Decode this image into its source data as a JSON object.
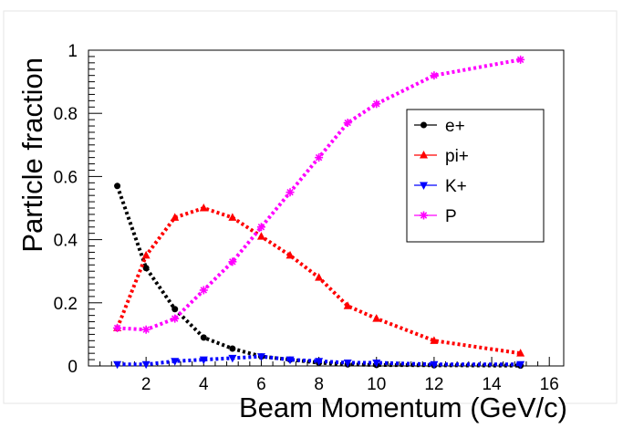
{
  "chart_data": {
    "type": "line",
    "xlabel": "Beam Momentum (GeV/c)",
    "ylabel": "Particle fraction",
    "xlim": [
      0,
      16.5
    ],
    "ylim": [
      0,
      1
    ],
    "x_ticks": [
      2,
      4,
      6,
      8,
      10,
      12,
      14,
      16
    ],
    "y_ticks": [
      0,
      0.2,
      0.4,
      0.6,
      0.8,
      1
    ],
    "y_tick_labels": [
      "0",
      "0.2",
      "0.4",
      "0.6",
      "0.8",
      "1"
    ],
    "grid": false,
    "legend_position": "top-right",
    "x": [
      1,
      2,
      3,
      4,
      5,
      6,
      7,
      8,
      9,
      10,
      12,
      15
    ],
    "series": [
      {
        "name": "e+",
        "color": "#000000",
        "marker": "circle",
        "values": [
          0.57,
          0.31,
          0.18,
          0.09,
          0.055,
          0.03,
          0.02,
          0.01,
          0.005,
          0.003,
          0.002,
          0.001
        ]
      },
      {
        "name": "pi+",
        "color": "#ff0000",
        "marker": "triangle-up",
        "values": [
          0.12,
          0.35,
          0.47,
          0.5,
          0.47,
          0.41,
          0.35,
          0.28,
          0.19,
          0.15,
          0.08,
          0.04
        ]
      },
      {
        "name": "K+",
        "color": "#0000ff",
        "marker": "triangle-down",
        "values": [
          0.005,
          0.005,
          0.015,
          0.02,
          0.025,
          0.03,
          0.02,
          0.015,
          0.01,
          0.01,
          0.005,
          0.005
        ]
      },
      {
        "name": "P",
        "color": "#ff00ff",
        "marker": "star",
        "values": [
          0.12,
          0.115,
          0.15,
          0.24,
          0.33,
          0.44,
          0.55,
          0.66,
          0.77,
          0.83,
          0.92,
          0.97
        ]
      }
    ]
  }
}
